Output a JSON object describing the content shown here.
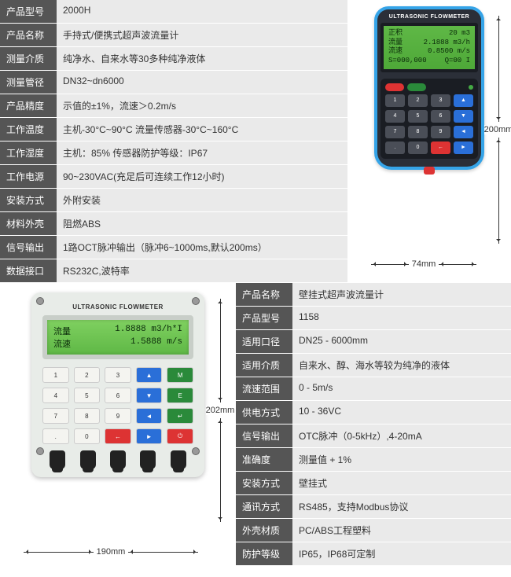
{
  "top": {
    "specs": [
      {
        "label": "产品型号",
        "value": "2000H"
      },
      {
        "label": "产品名称",
        "value": "手持式/便携式超声波流量计"
      },
      {
        "label": "测量介质",
        "value": "纯净水、自来水等30多种纯净液体"
      },
      {
        "label": "测量管径",
        "value": "DN32~dn6000"
      },
      {
        "label": "产品精度",
        "value": "示值的±1%，流速＞0.2m/s"
      },
      {
        "label": "工作温度",
        "value": "主机-30°C~90°C   流量传感器-30°C~160°C"
      },
      {
        "label": "工作湿度",
        "value": "主机：85%  传感器防护等级：IP67"
      },
      {
        "label": "工作电源",
        "value": "90~230VAC(充足后可连续工作12小时)"
      },
      {
        "label": "安装方式",
        "value": "外附安装"
      },
      {
        "label": "材料外壳",
        "value": "阻燃ABS"
      },
      {
        "label": "信号输出",
        "value": "1路OCT脉冲输出（脉冲6~1000ms,默认200ms）"
      },
      {
        "label": "数据接口",
        "value": "RS232C,波特率"
      }
    ],
    "device": {
      "title": "ULTRASONIC FLOWMETER",
      "lcd": [
        {
          "l": "正积",
          "r": "20 m3"
        },
        {
          "l": "流量",
          "r": "2.1888 m3/h"
        },
        {
          "l": "流速",
          "r": "0.8500 m/s"
        },
        {
          "l": "S=000,000",
          "r": "Q=00  I"
        }
      ],
      "body_color": "#35a4e8",
      "dim_h": "74mm",
      "dim_v": "200mm"
    }
  },
  "bottom": {
    "specs": [
      {
        "label": "产品名称",
        "value": "壁挂式超声波流量计"
      },
      {
        "label": "产品型号",
        "value": "1158"
      },
      {
        "label": "适用口径",
        "value": "DN25 - 6000mm"
      },
      {
        "label": "适用介质",
        "value": "自来水、醇、海水等较为纯净的液体"
      },
      {
        "label": "流速范围",
        "value": "0 - 5m/s"
      },
      {
        "label": "供电方式",
        "value": "10 - 36VC"
      },
      {
        "label": "信号输出",
        "value": "OTC脉冲（0-5kHz）,4-20mA"
      },
      {
        "label": "准确度",
        "value": "测量值 + 1%"
      },
      {
        "label": "安装方式",
        "value": "壁挂式"
      },
      {
        "label": "通讯方式",
        "value": "RS485，支持Modbus协议"
      },
      {
        "label": "外壳材质",
        "value": "PC/ABS工程塑料"
      },
      {
        "label": "防护等级",
        "value": "IP65，IP68可定制"
      }
    ],
    "device": {
      "title": "ULTRASONIC FLOWMETER",
      "lcd": [
        {
          "l": "流量",
          "r": "1.8888 m3/h*I"
        },
        {
          "l": "流速",
          "r": "1.5888 m/s"
        }
      ],
      "dim_h": "190mm",
      "dim_v": "202mm"
    }
  }
}
